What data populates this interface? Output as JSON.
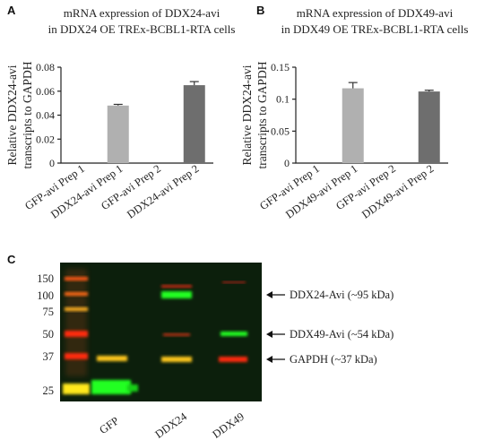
{
  "panels": {
    "A": {
      "letter": "A"
    },
    "B": {
      "letter": "B"
    },
    "C": {
      "letter": "C"
    }
  },
  "chart_data": [
    {
      "type": "bar",
      "title": "mRNA expression of DDX24-avi",
      "subtitle": "in DDX24 OE TREx-BCBL1-RTA cells",
      "ylabel": "Relative DDX24-avi transcripts to GAPDH",
      "ylim": [
        0,
        0.08
      ],
      "yticks": [
        "0",
        "0.02",
        "0.04",
        "0.06",
        "0.08"
      ],
      "categories": [
        "GFP-avi Prep 1",
        "DDX24-avi Prep 1",
        "GFP-avi Prep 2",
        "DDX24-avi Prep 2"
      ],
      "values": [
        0,
        0.048,
        0,
        0.065
      ],
      "errors": [
        0,
        0.001,
        0,
        0.003
      ],
      "colors": [
        "#c8c8c8",
        "#b0b0b0",
        "#8a8a8a",
        "#6e6e6e"
      ]
    },
    {
      "type": "bar",
      "title": "mRNA expression of DDX49-avi",
      "subtitle": "in DDX49 OE TREx-BCBL1-RTA cells",
      "ylabel": "Relative DDX24-avi transcripts to GAPDH",
      "ylim": [
        0,
        0.15
      ],
      "yticks": [
        "0",
        "0.05",
        "0.1",
        "0.15"
      ],
      "categories": [
        "GFP-avi Prep 1",
        "DDX49-avi Prep 1",
        "GFP-avi Prep 2",
        "DDX49-avi Prep 2"
      ],
      "values": [
        0,
        0.117,
        0,
        0.112
      ],
      "errors": [
        0,
        0.009,
        0,
        0.002
      ],
      "colors": [
        "#c8c8c8",
        "#b0b0b0",
        "#8a8a8a",
        "#6e6e6e"
      ]
    }
  ],
  "blot": {
    "ladder": [
      "150",
      "100",
      "75",
      "50",
      "37",
      "25"
    ],
    "lanes": [
      "GFP",
      "DDX24",
      "DDX49"
    ],
    "annotations": [
      "DDX24-Avi (~95 kDa)",
      "DDX49-Avi (~54 kDa)",
      "GAPDH (~37 kDa)"
    ],
    "colors": {
      "background": "#0c1f0c",
      "green": "#22ff22",
      "red": "#ff2a10",
      "yellow": "#ffc81e"
    }
  }
}
